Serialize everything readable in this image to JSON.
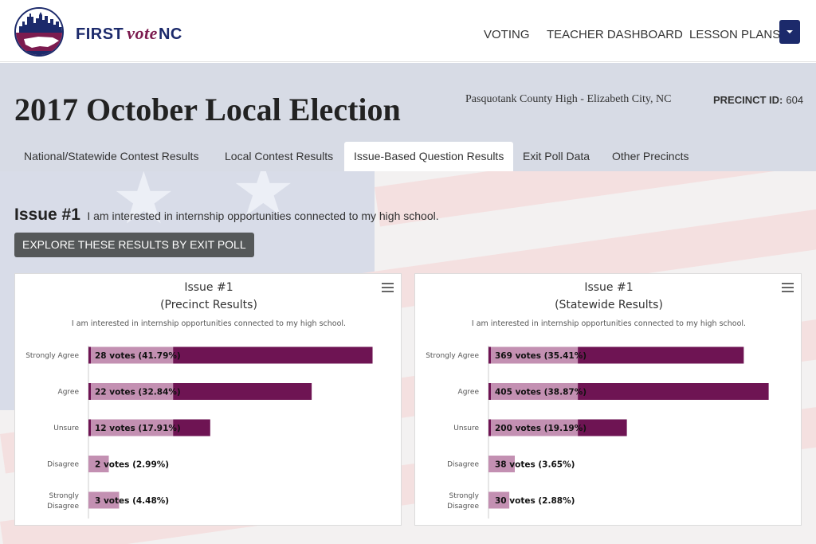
{
  "brand": {
    "first": "FIRST",
    "vote": "vote",
    "nc": "NC"
  },
  "nav": {
    "voting": "VOTING",
    "teacher_dashboard": "TEACHER DASHBOARD",
    "lesson_plans": "LESSON PLANS"
  },
  "election": {
    "title": "2017 October Local Election",
    "school": "Pasquotank County High - Elizabeth City, NC",
    "precinct_label": "PRECINCT ID:",
    "precinct_id": "604"
  },
  "tabs": [
    {
      "label": "National/Statewide Contest Results",
      "active": false
    },
    {
      "label": "Local Contest Results",
      "active": false
    },
    {
      "label": "Issue-Based Question Results",
      "active": true
    },
    {
      "label": "Exit Poll Data",
      "active": false
    },
    {
      "label": "Other Precincts",
      "active": false
    }
  ],
  "issue": {
    "label": "Issue #1",
    "text": "I am interested in internship opportunities connected to my high school.",
    "explore_button": "EXPLORE THESE RESULTS BY EXIT POLL"
  },
  "colors": {
    "bar": "#6e1453",
    "bar_light": "#c390b2",
    "brand_navy": "#1c2a6b",
    "brand_maroon": "#7c1b4f"
  },
  "chart_data": [
    {
      "type": "bar",
      "title": "Issue #1",
      "subtitle": "(Precinct Results)",
      "caption": "I am interested in internship opportunities connected to my high school.",
      "categories": [
        "Strongly Agree",
        "Agree",
        "Unsure",
        "Disagree",
        "Strongly Disagree"
      ],
      "values": [
        28,
        22,
        12,
        2,
        3
      ],
      "percent_labels": [
        "41.79%",
        "32.84%",
        "17.91%",
        "2.99%",
        "4.48%"
      ],
      "data_labels": [
        "28 votes (41.79%)",
        "22 votes (32.84%)",
        "12 votes (17.91%)",
        "2 votes (2.99%)",
        "3 votes (4.48%)"
      ],
      "xlim": [
        0,
        30
      ]
    },
    {
      "type": "bar",
      "title": "Issue #1",
      "subtitle": "(Statewide Results)",
      "caption": "I am interested in internship opportunities connected to my high school.",
      "categories": [
        "Strongly Agree",
        "Agree",
        "Unsure",
        "Disagree",
        "Strongly Disagree"
      ],
      "values": [
        369,
        405,
        200,
        38,
        30
      ],
      "percent_labels": [
        "35.41%",
        "38.87%",
        "19.19%",
        "3.65%",
        "2.88%"
      ],
      "data_labels": [
        "369 votes (35.41%)",
        "405 votes (38.87%)",
        "200 votes (19.19%)",
        "38 votes (3.65%)",
        "30 votes (2.88%)"
      ],
      "xlim": [
        0,
        440
      ]
    }
  ]
}
